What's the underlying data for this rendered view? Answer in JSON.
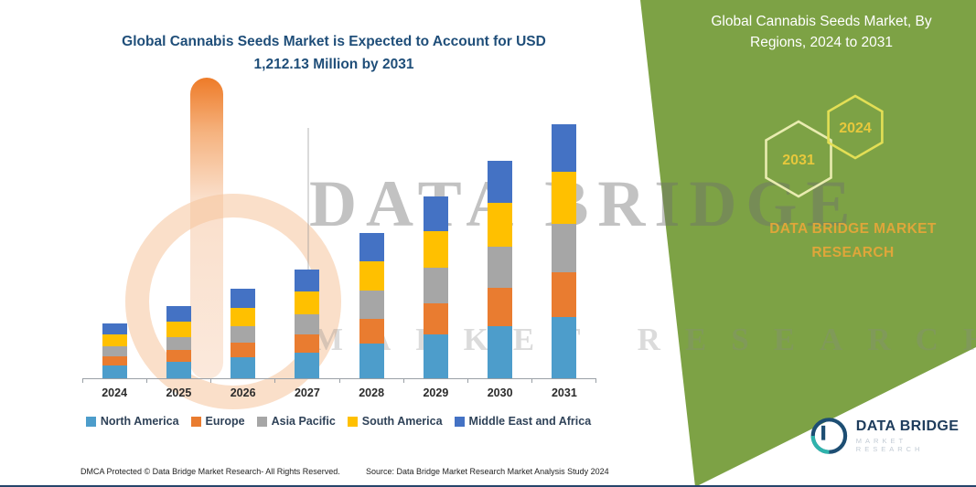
{
  "header": {
    "chart_title": "Global Cannabis Seeds Market is Expected to Account for USD 1,212.13 Million by 2031"
  },
  "side_panel": {
    "title": "Global Cannabis Seeds Market, By Regions, 2024 to 2031",
    "hexagon_years": [
      "2031",
      "2024"
    ],
    "brand_text": "DATA BRIDGE MARKET RESEARCH",
    "bg_color": "#7da245"
  },
  "watermark": {
    "line1": "DATA BRIDGE",
    "line2": "MARKET RESEARCH"
  },
  "chart_data": {
    "type": "bar",
    "stacked": true,
    "title": "Global Cannabis Seeds Market is Expected to Account for USD 1,212.13 Million by 2031",
    "unit": "USD Million",
    "categories": [
      "2024",
      "2025",
      "2026",
      "2027",
      "2028",
      "2029",
      "2030",
      "2031"
    ],
    "series": [
      {
        "name": "North America",
        "color": "#4d9dcb",
        "values": [
          61.5,
          79.1,
          101.0,
          123.0,
          166.9,
          210.8,
          250.3,
          294.2
        ]
      },
      {
        "name": "Europe",
        "color": "#e97c30",
        "values": [
          43.9,
          57.1,
          70.3,
          87.8,
          118.6,
          149.3,
          180.1,
          210.8
        ]
      },
      {
        "name": "Asia Pacific",
        "color": "#a6a6a6",
        "values": [
          48.3,
          61.5,
          79.1,
          96.6,
          131.8,
          166.9,
          197.6,
          232.8
        ]
      },
      {
        "name": "South America",
        "color": "#ffc000",
        "values": [
          57.1,
          74.7,
          87.8,
          105.4,
          140.5,
          175.7,
          210.8,
          245.9
        ]
      },
      {
        "name": "Middle East and Africa",
        "color": "#4472c4",
        "values": [
          52.7,
          74.7,
          87.8,
          105.4,
          136.2,
          166.9,
          197.6,
          228.4
        ]
      }
    ],
    "totals": [
      263.5,
      347.1,
      426.0,
      518.2,
      694.0,
      869.6,
      1036.4,
      1212.1
    ],
    "ylim": [
      0,
      1300
    ],
    "grid": false,
    "legend_position": "bottom"
  },
  "footer": {
    "dmca": "DMCA Protected © Data Bridge Market Research- All Rights Reserved.",
    "source": "Source: Data Bridge Market Research Market Analysis Study 2024"
  },
  "logo": {
    "name": "DATA BRIDGE",
    "subtitle": "MARKET RESEARCH"
  }
}
